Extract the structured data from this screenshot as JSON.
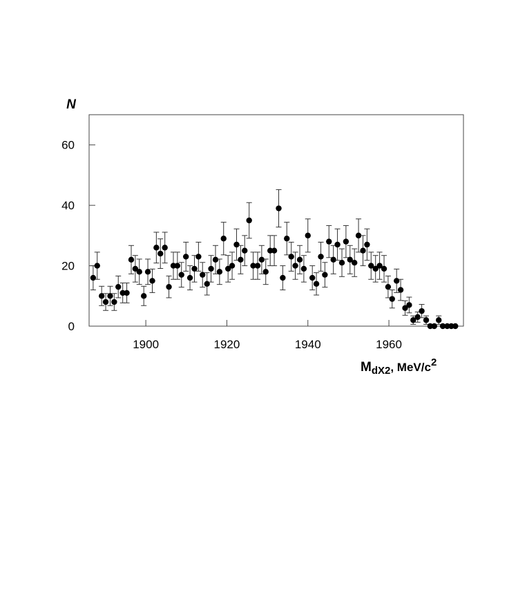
{
  "chart_data": {
    "type": "scatter",
    "y_label": "N",
    "x_label": {
      "main": "M",
      "sub": "dX2",
      "unit": ", MeV/c",
      "sup": "2"
    },
    "color": "#000000",
    "xlim": [
      1886,
      1978.4
    ],
    "ylim": [
      0,
      70
    ],
    "xticks": [
      1900,
      1920,
      1940,
      1960
    ],
    "yticks": [
      0,
      20,
      40,
      60
    ],
    "x": [
      1887.0,
      1888.0,
      1889.1,
      1890.1,
      1891.2,
      1892.2,
      1893.2,
      1894.3,
      1895.3,
      1896.4,
      1897.4,
      1898.4,
      1899.5,
      1900.5,
      1901.6,
      1902.6,
      1903.6,
      1904.7,
      1905.7,
      1906.8,
      1907.8,
      1908.8,
      1909.9,
      1910.9,
      1912.0,
      1913.0,
      1914.0,
      1915.1,
      1916.1,
      1917.2,
      1918.2,
      1919.2,
      1920.3,
      1921.3,
      1922.4,
      1923.4,
      1924.4,
      1925.5,
      1926.5,
      1927.6,
      1928.6,
      1929.6,
      1930.7,
      1931.7,
      1932.8,
      1933.8,
      1934.8,
      1935.9,
      1936.9,
      1938.0,
      1939.0,
      1940.0,
      1941.1,
      1942.1,
      1943.2,
      1944.2,
      1945.2,
      1946.3,
      1947.3,
      1948.4,
      1949.4,
      1950.4,
      1951.5,
      1952.5,
      1953.6,
      1954.6,
      1955.6,
      1956.7,
      1957.7,
      1958.8,
      1959.8,
      1960.8,
      1961.9,
      1962.9,
      1964.0,
      1965.0,
      1966.0,
      1967.1,
      1968.1,
      1969.2,
      1970.2,
      1971.2,
      1972.3,
      1973.3,
      1974.4,
      1975.4,
      1976.4
    ],
    "values": [
      16,
      20,
      10,
      8,
      10,
      8,
      13,
      11,
      11,
      22,
      19,
      18,
      10,
      18,
      15,
      26,
      24,
      26,
      13,
      20,
      20,
      17,
      23,
      16,
      19,
      23,
      17,
      14,
      19,
      22,
      18,
      29,
      19,
      20,
      27,
      22,
      25,
      35,
      20,
      20,
      22,
      18,
      25,
      25,
      39,
      16,
      29,
      23,
      20,
      22,
      19,
      30,
      16,
      14,
      23,
      17,
      28,
      22,
      27,
      21,
      28,
      22,
      21,
      30,
      25,
      27,
      20,
      19,
      20,
      19,
      13,
      9,
      15,
      12,
      6,
      7,
      2,
      3,
      5,
      2,
      0,
      0,
      2,
      0,
      0,
      0,
      0
    ],
    "errors": [
      4,
      4.5,
      3.2,
      2.8,
      3.2,
      2.8,
      3.6,
      3.3,
      3.3,
      4.7,
      4.4,
      4.2,
      3.2,
      4.2,
      3.9,
      5.1,
      4.9,
      5.1,
      3.6,
      4.5,
      4.5,
      4.1,
      4.8,
      4,
      4.4,
      4.8,
      4.1,
      3.7,
      4.4,
      4.7,
      4.2,
      5.4,
      4.4,
      4.5,
      5.2,
      4.7,
      5,
      5.9,
      4.5,
      4.5,
      4.7,
      4.2,
      5,
      5,
      6.2,
      4,
      5.4,
      4.8,
      4.5,
      4.7,
      4.4,
      5.5,
      4,
      3.7,
      4.8,
      4.1,
      5.3,
      4.7,
      5.2,
      4.6,
      5.3,
      4.7,
      4.6,
      5.5,
      5,
      5.2,
      4.5,
      4.4,
      4.5,
      4.4,
      3.6,
      3,
      3.9,
      3.5,
      2.4,
      2.6,
      1.4,
      1.7,
      2.2,
      1.4,
      0,
      0,
      1.4,
      0,
      0,
      0,
      0
    ]
  }
}
